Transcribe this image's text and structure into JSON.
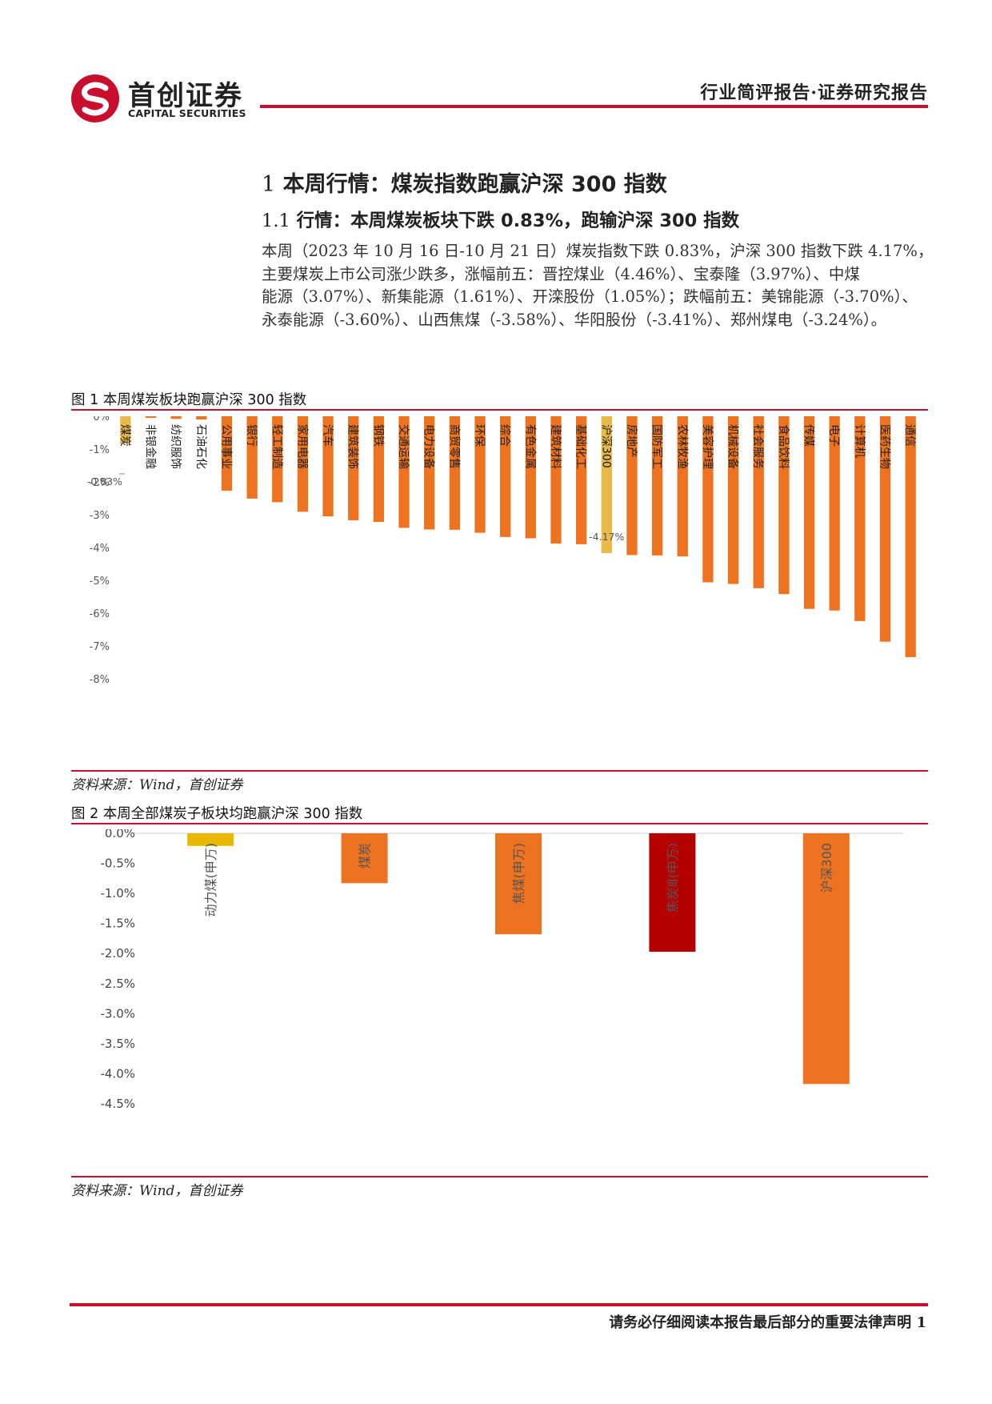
{
  "header": {
    "logo_cn": "首创证券",
    "logo_en": "CAPITAL SECURITIES",
    "report_type": "行业简评报告·证券研究报告"
  },
  "section": {
    "h1_num": "1",
    "h1_text": "本周行情：煤炭指数跑赢沪深 300 指数",
    "h2_num": "1.1",
    "h2_text": "行情：本周煤炭板块下跌 0.83%，跑输沪深 300 指数",
    "paragraph_lines": [
      "本周（2023 年 10 月 16 日-10 月 21 日）煤炭指数下跌 0.83%，沪深 300 指数下跌 4.17%，",
      "主要煤炭上市公司涨少跌多，涨幅前五：晋控煤业（4.46%）、宝泰隆（3.97%）、中煤",
      "能源（3.07%）、新集能源（1.61%）、开滦股份（1.05%）；跌幅前五：美锦能源（-3.70%）、",
      "永泰能源（-3.60%）、山西焦煤（-3.58%）、华阳股份（-3.41%）、郑州煤电（-3.24%）。"
    ]
  },
  "figure1": {
    "title": "图 1 本周煤炭板块跑赢沪深 300 指数",
    "source": "资料来源：Wind，首创证券"
  },
  "figure2": {
    "title": "图 2 本周全部煤炭子板块均跑赢沪深 300 指数",
    "source": "资料来源：Wind，首创证券"
  },
  "footer": {
    "text": "请务必仔细阅读本报告最后部分的重要法律声明",
    "page": "1"
  },
  "colors": {
    "brand_red": "#c8102e",
    "bar_orange": "#ee7320",
    "bar_yellow": "#e9b949",
    "bar_gold": "#e8b800",
    "bar_darkred": "#b40000"
  },
  "chart_data": [
    {
      "type": "bar",
      "categories": [
        "煤炭",
        "非银金融",
        "纺织服饰",
        "石油石化",
        "公用事业",
        "银行",
        "轻工制造",
        "家用电器",
        "汽车",
        "建筑装饰",
        "钢铁",
        "交通运输",
        "电力设备",
        "商贸零售",
        "环保",
        "综合",
        "有色金属",
        "建筑材料",
        "基础化工",
        "沪深300",
        "房地产",
        "国防军工",
        "农林牧渔",
        "美容护理",
        "机械设备",
        "社会服务",
        "食品饮料",
        "传媒",
        "电子",
        "计算机",
        "医药生物",
        "通信"
      ],
      "values": [
        -0.83,
        -0.05,
        -0.08,
        -0.1,
        -2.27,
        -2.51,
        -2.62,
        -2.91,
        -3.05,
        -3.17,
        -3.22,
        -3.4,
        -3.45,
        -3.46,
        -3.55,
        -3.68,
        -3.72,
        -3.88,
        -3.9,
        -4.17,
        -4.23,
        -4.24,
        -4.27,
        -5.06,
        -5.11,
        -5.24,
        -5.42,
        -5.87,
        -5.92,
        -6.24,
        -6.87,
        -7.34
      ],
      "highlight": [
        "煤炭",
        "沪深300"
      ],
      "data_labels": {
        "煤炭": "-0.83%",
        "沪深300": "-4.17%"
      },
      "ylim": [
        -8,
        0
      ],
      "yticks": [
        "0%",
        "-1%",
        "-2%",
        "-3%",
        "-4%",
        "-5%",
        "-6%",
        "-7%",
        "-8%"
      ],
      "grid": false
    },
    {
      "type": "bar",
      "categories": [
        "动力煤(申万)",
        "煤炭",
        "焦煤(申万)",
        "焦炭Ⅲ(申万)",
        "沪深300"
      ],
      "values": [
        -0.21,
        -0.83,
        -1.68,
        -1.97,
        -4.17
      ],
      "ylim": [
        -4.5,
        0
      ],
      "yticks": [
        "0.0%",
        "-0.5%",
        "-1.0%",
        "-1.5%",
        "-2.0%",
        "-2.5%",
        "-3.0%",
        "-3.5%",
        "-4.0%",
        "-4.5%"
      ],
      "grid": false
    }
  ]
}
